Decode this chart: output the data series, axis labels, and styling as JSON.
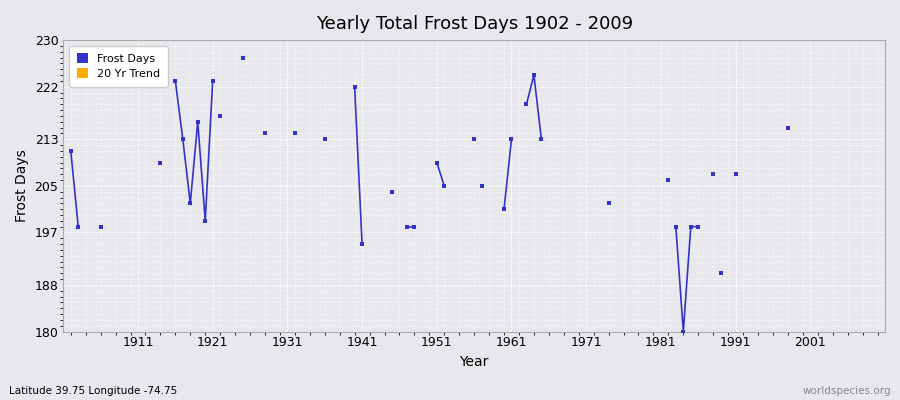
{
  "title": "Yearly Total Frost Days 1902 - 2009",
  "xlabel": "Year",
  "ylabel": "Frost Days",
  "lat_lon_label": "Latitude 39.75 Longitude -74.75",
  "watermark": "worldspecies.org",
  "ylim": [
    180,
    230
  ],
  "xlim": [
    1901,
    2011
  ],
  "yticks": [
    180,
    188,
    197,
    205,
    213,
    222,
    230
  ],
  "xticks": [
    1911,
    1921,
    1931,
    1941,
    1951,
    1961,
    1971,
    1981,
    1991,
    2001
  ],
  "fig_bg_color": "#e8e8ec",
  "plot_bg_color": "#e8e8ec",
  "line_color": "#3333cc",
  "marker_color": "#3333cc",
  "segments": [
    {
      "type": "line",
      "years": [
        1902,
        1903
      ],
      "values": [
        211,
        198
      ]
    },
    {
      "type": "dot",
      "years": [
        1906
      ],
      "values": [
        198
      ]
    },
    {
      "type": "dot",
      "years": [
        1914
      ],
      "values": [
        209
      ]
    },
    {
      "type": "line",
      "years": [
        1916,
        1917,
        1918,
        1919,
        1920,
        1921
      ],
      "values": [
        223,
        213,
        202,
        216,
        199,
        223
      ]
    },
    {
      "type": "dot",
      "years": [
        1922
      ],
      "values": [
        217
      ]
    },
    {
      "type": "dot",
      "years": [
        1925
      ],
      "values": [
        227
      ]
    },
    {
      "type": "dot",
      "years": [
        1928
      ],
      "values": [
        214
      ]
    },
    {
      "type": "dot",
      "years": [
        1932
      ],
      "values": [
        214
      ]
    },
    {
      "type": "dot",
      "years": [
        1936
      ],
      "values": [
        213
      ]
    },
    {
      "type": "line",
      "years": [
        1940,
        1941
      ],
      "values": [
        222,
        195
      ]
    },
    {
      "type": "dot",
      "years": [
        1945
      ],
      "values": [
        204
      ]
    },
    {
      "type": "line",
      "years": [
        1947,
        1948
      ],
      "values": [
        198,
        198
      ]
    },
    {
      "type": "line",
      "years": [
        1951,
        1952
      ],
      "values": [
        209,
        205
      ]
    },
    {
      "type": "dot",
      "years": [
        1956
      ],
      "values": [
        213
      ]
    },
    {
      "type": "dot",
      "years": [
        1957
      ],
      "values": [
        205
      ]
    },
    {
      "type": "line",
      "years": [
        1960,
        1961
      ],
      "values": [
        201,
        213
      ]
    },
    {
      "type": "line",
      "years": [
        1963,
        1964,
        1965
      ],
      "values": [
        219,
        224,
        213
      ]
    },
    {
      "type": "dot",
      "years": [
        1974
      ],
      "values": [
        202
      ]
    },
    {
      "type": "dot",
      "years": [
        1982
      ],
      "values": [
        206
      ]
    },
    {
      "type": "line",
      "years": [
        1983,
        1984,
        1985,
        1986
      ],
      "values": [
        198,
        180,
        198,
        198
      ]
    },
    {
      "type": "dot",
      "years": [
        1988
      ],
      "values": [
        207
      ]
    },
    {
      "type": "dot",
      "years": [
        1989
      ],
      "values": [
        190
      ]
    },
    {
      "type": "dot",
      "years": [
        1991
      ],
      "values": [
        207
      ]
    },
    {
      "type": "dot",
      "years": [
        1998
      ],
      "values": [
        215
      ]
    }
  ]
}
